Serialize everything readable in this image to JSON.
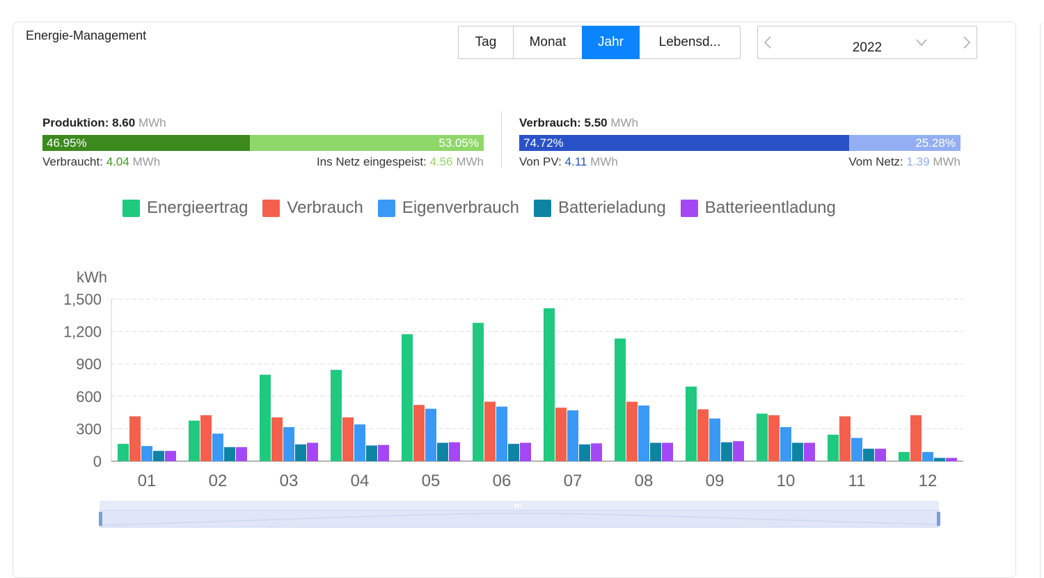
{
  "title": "Energie-Management",
  "period_tabs": [
    {
      "label": "Tag",
      "active": false
    },
    {
      "label": "Monat",
      "active": false
    },
    {
      "label": "Jahr",
      "active": true
    },
    {
      "label": "Lebensd...",
      "active": false
    }
  ],
  "date_picker": {
    "value": "2022",
    "prev_icon": "chevron-left-icon",
    "next_icon": "chevron-right-icon",
    "caret_icon": "chevron-down-icon"
  },
  "production": {
    "label": "Produktion:",
    "value": "8.60",
    "unit": "MWh",
    "left_percent": "46.95%",
    "right_percent": "53.05%",
    "left_fraction": 0.4695,
    "consumed_label": "Verbraucht:",
    "consumed_value": "4.04",
    "consumed_unit": "MWh",
    "fed_label": "Ins Netz eingespeist:",
    "fed_value": "4.56",
    "fed_unit": "MWh",
    "colors": {
      "left": "#3c8a1e",
      "right": "#8ed86a",
      "consumed": "#3c9a1e",
      "fed": "#8ed86a"
    }
  },
  "consumption": {
    "label": "Verbrauch:",
    "value": "5.50",
    "unit": "MWh",
    "left_percent": "74.72%",
    "right_percent": "25.28%",
    "left_fraction": 0.7472,
    "pv_label": "Von PV:",
    "pv_value": "4.11",
    "pv_unit": "MWh",
    "grid_label": "Vom Netz:",
    "grid_value": "1.39",
    "grid_unit": "MWh",
    "colors": {
      "left": "#2a52c8",
      "right": "#93aef2",
      "pv": "#2a52c8",
      "grid": "#93aef2"
    }
  },
  "chart_data": {
    "type": "bar",
    "ylabel": "kWh",
    "ylim": [
      0,
      1500
    ],
    "yticks": [
      "0",
      "300",
      "600",
      "900",
      "1,200",
      "1,500"
    ],
    "ytick_values": [
      0,
      300,
      600,
      900,
      1200,
      1500
    ],
    "grid": true,
    "legend_position": "top-center",
    "categories": [
      "01",
      "02",
      "03",
      "04",
      "05",
      "06",
      "07",
      "08",
      "09",
      "10",
      "11",
      "12"
    ],
    "series": [
      {
        "name": "Energieertrag",
        "color": "#1fc97f",
        "values": [
          160,
          375,
          800,
          845,
          1175,
          1280,
          1415,
          1135,
          690,
          440,
          245,
          85
        ]
      },
      {
        "name": "Verbrauch",
        "color": "#f4604c",
        "values": [
          415,
          425,
          405,
          405,
          520,
          550,
          495,
          550,
          480,
          425,
          415,
          425
        ]
      },
      {
        "name": "Eigenverbrauch",
        "color": "#3a98f6",
        "values": [
          140,
          255,
          315,
          340,
          485,
          505,
          470,
          515,
          395,
          315,
          215,
          85
        ]
      },
      {
        "name": "Batterieladung",
        "color": "#0e84a4",
        "values": [
          95,
          130,
          155,
          145,
          170,
          160,
          155,
          170,
          175,
          170,
          115,
          30
        ]
      },
      {
        "name": "Batterieentladung",
        "color": "#a448f6",
        "values": [
          95,
          130,
          170,
          150,
          175,
          170,
          165,
          170,
          185,
          170,
          115,
          30
        ]
      }
    ],
    "zoom_range": [
      0,
      1
    ]
  }
}
